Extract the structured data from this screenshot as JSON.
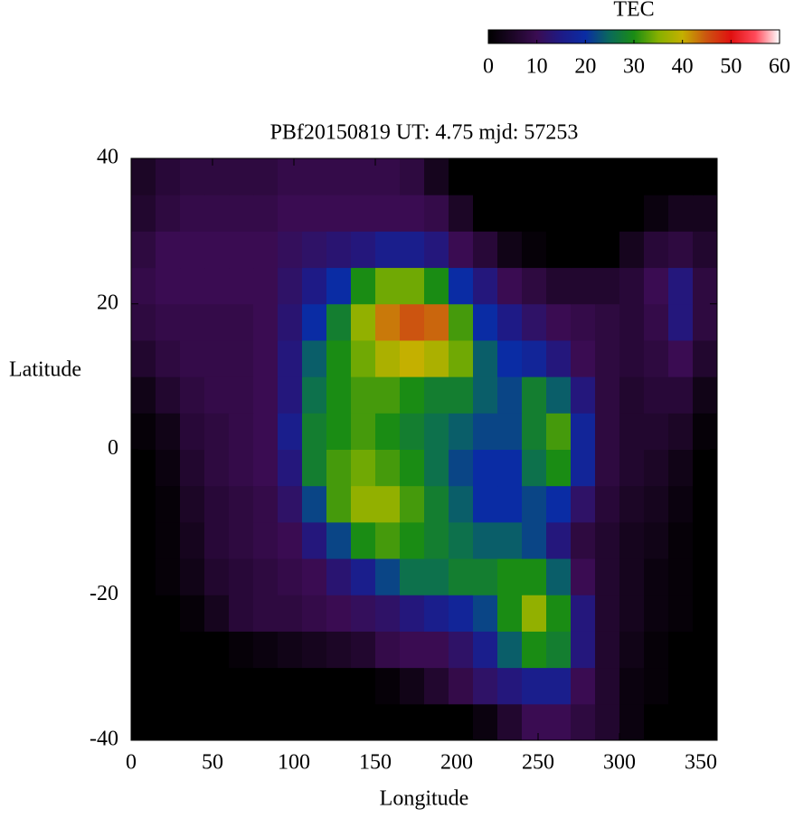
{
  "chart_data": {
    "type": "heatmap",
    "title": "PBf20150819  UT: 4.75  mjd: 57253",
    "xlabel": "Longitude",
    "ylabel": "Latitude",
    "colorbar_label": "TEC",
    "x": [
      7.5,
      22.5,
      37.5,
      52.5,
      67.5,
      82.5,
      97.5,
      112.5,
      127.5,
      142.5,
      157.5,
      172.5,
      187.5,
      202.5,
      217.5,
      232.5,
      247.5,
      262.5,
      277.5,
      292.5,
      307.5,
      322.5,
      337.5,
      352.5
    ],
    "y": [
      -37.5,
      -32.5,
      -27.5,
      -22.5,
      -17.5,
      -12.5,
      -7.5,
      -2.5,
      2.5,
      7.5,
      12.5,
      17.5,
      22.5,
      27.5,
      32.5,
      37.5
    ],
    "z": [
      [
        0,
        0,
        0,
        0,
        0,
        0,
        0,
        0,
        0,
        0,
        0,
        0,
        0,
        0,
        2,
        6,
        10,
        10,
        8,
        6,
        2,
        0,
        0,
        0
      ],
      [
        0,
        0,
        0,
        0,
        0,
        0,
        0,
        0,
        0,
        0,
        1,
        3,
        6,
        9,
        12,
        14,
        16,
        16,
        10,
        6,
        2,
        1,
        0,
        0
      ],
      [
        0,
        0,
        0,
        0,
        1,
        2,
        3,
        4,
        5,
        6,
        9,
        10,
        10,
        12,
        16,
        24,
        30,
        28,
        14,
        6,
        3,
        1,
        0,
        0
      ],
      [
        0,
        0,
        1,
        4,
        7,
        8,
        8,
        9,
        10,
        11,
        12,
        14,
        16,
        18,
        22,
        30,
        36,
        30,
        14,
        6,
        4,
        2,
        1,
        0
      ],
      [
        0,
        1,
        3,
        6,
        7,
        8,
        9,
        10,
        13,
        16,
        22,
        26,
        26,
        28,
        28,
        30,
        30,
        24,
        10,
        6,
        4,
        2,
        1,
        0
      ],
      [
        0,
        1,
        4,
        7,
        8,
        9,
        10,
        14,
        22,
        30,
        32,
        30,
        28,
        26,
        24,
        24,
        22,
        14,
        8,
        6,
        4,
        3,
        1,
        0
      ],
      [
        0,
        1,
        5,
        7,
        8,
        9,
        12,
        22,
        32,
        36,
        36,
        32,
        28,
        24,
        20,
        20,
        22,
        20,
        12,
        7,
        5,
        4,
        2,
        0
      ],
      [
        0,
        2,
        6,
        8,
        9,
        10,
        14,
        28,
        32,
        34,
        32,
        30,
        26,
        22,
        20,
        20,
        26,
        30,
        18,
        8,
        6,
        5,
        3,
        0
      ],
      [
        1,
        3,
        7,
        8,
        9,
        10,
        16,
        28,
        30,
        32,
        30,
        28,
        26,
        24,
        22,
        22,
        28,
        32,
        18,
        8,
        6,
        6,
        5,
        1
      ],
      [
        3,
        6,
        8,
        9,
        9,
        10,
        14,
        26,
        30,
        32,
        32,
        30,
        28,
        28,
        24,
        22,
        28,
        24,
        14,
        8,
        6,
        7,
        7,
        3
      ],
      [
        6,
        8,
        9,
        9,
        9,
        10,
        14,
        24,
        30,
        34,
        38,
        40,
        38,
        34,
        24,
        20,
        18,
        14,
        10,
        8,
        7,
        8,
        10,
        6
      ],
      [
        8,
        9,
        9,
        9,
        9,
        10,
        13,
        20,
        28,
        36,
        43,
        45,
        44,
        32,
        20,
        15,
        12,
        10,
        9,
        8,
        7,
        9,
        14,
        8
      ],
      [
        9,
        10,
        10,
        10,
        10,
        10,
        12,
        15,
        20,
        30,
        34,
        34,
        30,
        20,
        14,
        10,
        8,
        6,
        6,
        6,
        7,
        10,
        14,
        8
      ],
      [
        8,
        10,
        10,
        10,
        10,
        10,
        11,
        12,
        13,
        14,
        16,
        16,
        14,
        10,
        7,
        3,
        1,
        0,
        0,
        0,
        4,
        7,
        8,
        6
      ],
      [
        6,
        8,
        9,
        9,
        9,
        9,
        10,
        10,
        10,
        10,
        10,
        10,
        9,
        5,
        0,
        0,
        0,
        0,
        0,
        0,
        0,
        2,
        4,
        4
      ],
      [
        5,
        7,
        8,
        8,
        8,
        8,
        9,
        9,
        9,
        9,
        9,
        8,
        4,
        0,
        0,
        0,
        0,
        0,
        0,
        0,
        0,
        0,
        0,
        0
      ]
    ],
    "xlim": [
      0,
      360
    ],
    "xticks": [
      0,
      50,
      100,
      150,
      200,
      250,
      300,
      350
    ],
    "ylim": [
      -40,
      40
    ],
    "yticks": [
      -40,
      -20,
      0,
      20,
      40
    ],
    "clim": [
      0,
      60
    ],
    "cticks": [
      0,
      10,
      20,
      30,
      40,
      50,
      60
    ],
    "colormap": [
      "#000000",
      "#1c0626",
      "#3a0c52",
      "#1e1a86",
      "#0a2ca4",
      "#0a6a5a",
      "#1a8c14",
      "#86b000",
      "#c4b000",
      "#cc5410",
      "#e01010",
      "#ff4a5a",
      "#ffffff"
    ]
  }
}
